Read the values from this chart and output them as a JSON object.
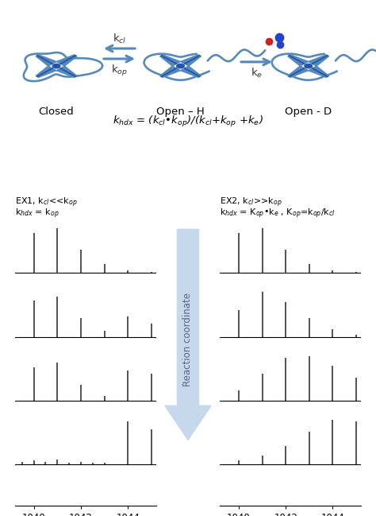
{
  "fig_width": 4.74,
  "fig_height": 6.49,
  "bg_color": "#ffffff",
  "bar_color": "#444444",
  "mz_ticks": [
    1040,
    1042,
    1044
  ],
  "mz_range": [
    1039.2,
    1045.2
  ],
  "protein_color": "#5588bb",
  "arrow_color": "#c5d8ec",
  "ex1_title_line1": "EX1, k$_{cl}$<<k$_{op}$",
  "ex1_title_line2": "k$_{hdx}$ = k$_{op}$",
  "ex2_title_line1": "EX2, k$_{cl}$>>k$_{op}$",
  "ex2_title_line2": "k$_{hdx}$ = K$_{op}$•k$_{e}$ , K$_{op}$=k$_{op}$/k$_{cl}$",
  "ex1_spectra": [
    [
      0.0,
      0.82,
      0.0,
      0.92,
      0.0,
      0.48,
      0.0,
      0.18,
      0.0,
      0.05,
      0.0,
      0.02
    ],
    [
      0.0,
      0.75,
      0.0,
      0.82,
      0.0,
      0.38,
      0.0,
      0.12,
      0.0,
      0.42,
      0.0,
      0.28,
      0.0,
      0.15,
      0.0,
      0.06
    ],
    [
      0.0,
      0.68,
      0.0,
      0.78,
      0.0,
      0.32,
      0.0,
      0.1,
      0.0,
      0.62,
      0.0,
      0.55,
      0.0,
      0.3,
      0.0,
      0.12,
      0.0,
      0.05
    ],
    [
      0.05,
      0.08,
      0.05,
      0.1,
      0.04,
      0.06,
      0.03,
      0.04,
      0.0,
      0.88,
      0.0,
      0.72,
      0.0,
      0.42,
      0.0,
      0.18,
      0.0,
      0.08
    ]
  ],
  "ex2_spectra": [
    [
      0.0,
      0.82,
      0.0,
      0.92,
      0.0,
      0.48,
      0.0,
      0.18,
      0.0,
      0.05,
      0.0,
      0.02
    ],
    [
      0.0,
      0.55,
      0.0,
      0.92,
      0.0,
      0.72,
      0.0,
      0.38,
      0.0,
      0.15,
      0.0,
      0.05
    ],
    [
      0.0,
      0.22,
      0.0,
      0.55,
      0.0,
      0.88,
      0.0,
      0.92,
      0.0,
      0.72,
      0.0,
      0.48,
      0.0,
      0.28,
      0.0,
      0.12,
      0.0,
      0.04
    ],
    [
      0.0,
      0.08,
      0.0,
      0.18,
      0.0,
      0.38,
      0.0,
      0.68,
      0.0,
      0.92,
      0.0,
      0.88,
      0.0,
      0.62,
      0.0,
      0.35,
      0.0,
      0.15,
      0.0,
      0.06
    ]
  ]
}
